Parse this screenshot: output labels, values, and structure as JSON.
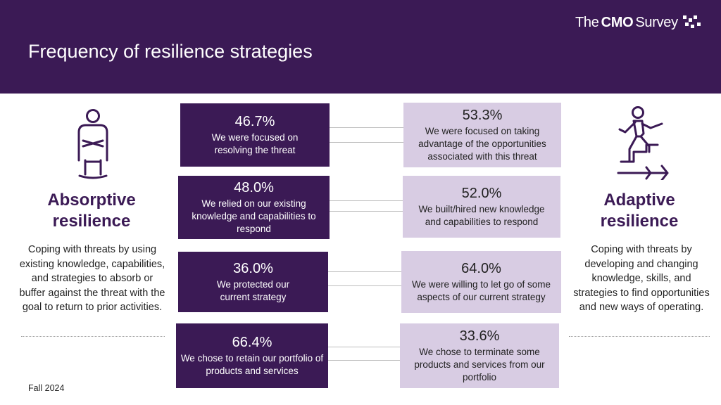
{
  "header": {
    "title": "Frequency of resilience strategies",
    "logo": {
      "prefix": "The",
      "bold": "CMO",
      "suffix": "Survey"
    }
  },
  "left": {
    "icon": "person-standing-arms-crossed-icon",
    "title_line1": "Absorptive",
    "title_line2": "resilience",
    "description": "Coping with threats by using existing knowledge, capabilities, and strategies to absorb or buffer against the threat with the goal to return to prior activities."
  },
  "right": {
    "icon": "person-climbing-stairs-icon",
    "title_line1": "Adaptive",
    "title_line2": "resilience",
    "description": "Coping with threats by developing and changing knowledge, skills, and strategies to find opportunities and new ways of operating."
  },
  "pairs": [
    {
      "left": {
        "pct": "46.7%",
        "text": "We were focused on resolving the threat"
      },
      "right": {
        "pct": "53.3%",
        "text": "We were focused on taking advantage of the opportunities associated with this threat"
      }
    },
    {
      "left": {
        "pct": "48.0%",
        "text": "We relied on our existing knowledge and capabilities to respond"
      },
      "right": {
        "pct": "52.0%",
        "text": "We built/hired new knowledge and capabilities to respond"
      }
    },
    {
      "left": {
        "pct": "36.0%",
        "text": "We protected our current strategy"
      },
      "right": {
        "pct": "64.0%",
        "text": "We were willing to let go of some aspects of our current strategy"
      }
    },
    {
      "left": {
        "pct": "66.4%",
        "text": "We chose to retain our portfolio of products and services"
      },
      "right": {
        "pct": "33.6%",
        "text": "We chose to terminate some products and services from our portfolio"
      }
    }
  ],
  "colors": {
    "dark": "#3b1a55",
    "light": "#d8cce3"
  },
  "footer": "Fall 2024"
}
